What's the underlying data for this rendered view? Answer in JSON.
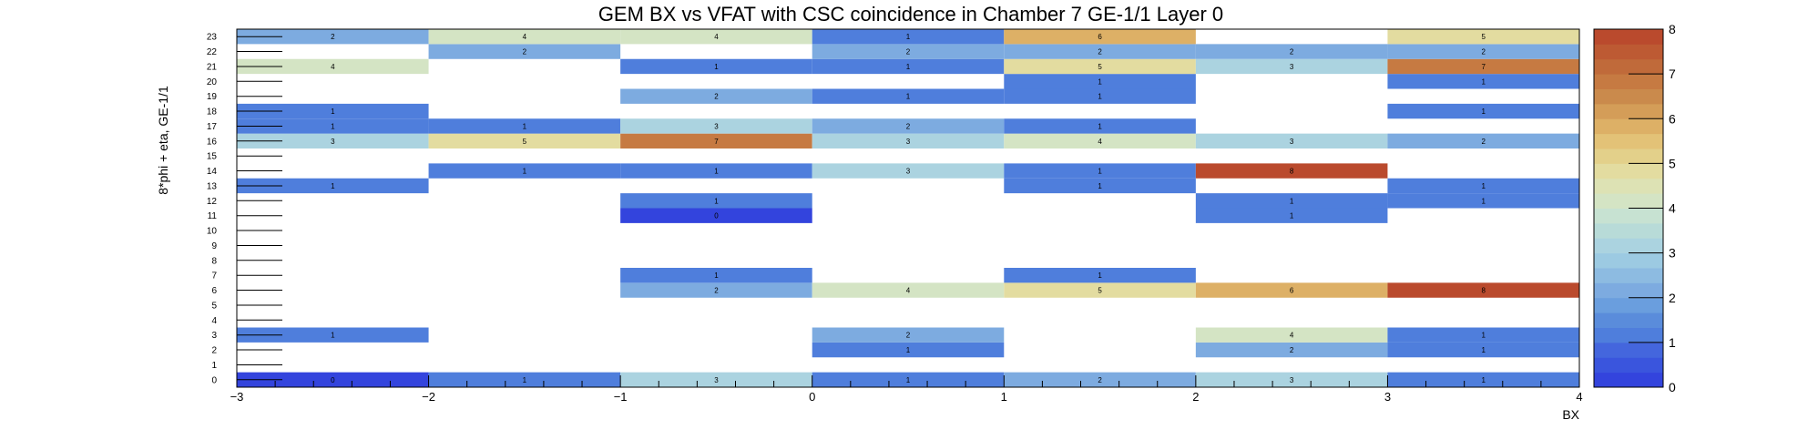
{
  "chart_data": {
    "type": "heatmap",
    "title": "GEM BX vs VFAT with CSC coincidence in Chamber 7 GE-1/1 Layer 0",
    "xlabel": "BX",
    "ylabel": "8*phi + eta, GE-1/1",
    "xlim": [
      -3,
      4
    ],
    "ylim": [
      -0.5,
      23.5
    ],
    "x_bin_edges": [
      -3,
      -2,
      -1,
      0,
      1,
      2,
      3,
      4
    ],
    "x_ticks": [
      -3,
      -2,
      -1,
      0,
      1,
      2,
      3,
      4
    ],
    "x_tick_labels": [
      "−3",
      "−2",
      "−1",
      "0",
      "1",
      "2",
      "3",
      "4"
    ],
    "y_categories": [
      0,
      1,
      2,
      3,
      4,
      5,
      6,
      7,
      8,
      9,
      10,
      11,
      12,
      13,
      14,
      15,
      16,
      17,
      18,
      19,
      20,
      21,
      22,
      23
    ],
    "zlim": [
      0,
      8
    ],
    "z_ticks": [
      0,
      1,
      2,
      3,
      4,
      5,
      6,
      7,
      8
    ],
    "colorbar_colors": [
      "#3344dd",
      "#3a55dd",
      "#4466dd",
      "#4f7edc",
      "#5a8cdb",
      "#6a9ede",
      "#7dabe0",
      "#8dbbe1",
      "#9ccae2",
      "#abd3e0",
      "#b8dbd8",
      "#c7e2d2",
      "#d4e4c4",
      "#dde2b4",
      "#e3dca0",
      "#e3d08a",
      "#e3c277",
      "#ddb066",
      "#d49d58",
      "#ca8a4c",
      "#c67a42",
      "#c06a3a",
      "#bd5a33",
      "#ba4a2d"
    ],
    "cells": [
      {
        "bx": -2.5,
        "vfat": 0,
        "value": 0
      },
      {
        "bx": -1.5,
        "vfat": 0,
        "value": 1
      },
      {
        "bx": -0.5,
        "vfat": 0,
        "value": 3
      },
      {
        "bx": 0.5,
        "vfat": 0,
        "value": 1
      },
      {
        "bx": 1.5,
        "vfat": 0,
        "value": 2
      },
      {
        "bx": 2.5,
        "vfat": 0,
        "value": 3
      },
      {
        "bx": 3.5,
        "vfat": 0,
        "value": 1
      },
      {
        "bx": 0.5,
        "vfat": 2,
        "value": 1
      },
      {
        "bx": 2.5,
        "vfat": 2,
        "value": 2
      },
      {
        "bx": 3.5,
        "vfat": 2,
        "value": 1
      },
      {
        "bx": -2.5,
        "vfat": 3,
        "value": 1
      },
      {
        "bx": 0.5,
        "vfat": 3,
        "value": 2
      },
      {
        "bx": 2.5,
        "vfat": 3,
        "value": 4
      },
      {
        "bx": 3.5,
        "vfat": 3,
        "value": 1
      },
      {
        "bx": -0.5,
        "vfat": 6,
        "value": 2
      },
      {
        "bx": 0.5,
        "vfat": 6,
        "value": 4
      },
      {
        "bx": 1.5,
        "vfat": 6,
        "value": 5
      },
      {
        "bx": 2.5,
        "vfat": 6,
        "value": 6
      },
      {
        "bx": 3.5,
        "vfat": 6,
        "value": 8
      },
      {
        "bx": -0.5,
        "vfat": 7,
        "value": 1
      },
      {
        "bx": 1.5,
        "vfat": 7,
        "value": 1
      },
      {
        "bx": -0.5,
        "vfat": 11,
        "value": 0
      },
      {
        "bx": 2.5,
        "vfat": 11,
        "value": 1
      },
      {
        "bx": -0.5,
        "vfat": 12,
        "value": 1
      },
      {
        "bx": 2.5,
        "vfat": 12,
        "value": 1
      },
      {
        "bx": 3.5,
        "vfat": 12,
        "value": 1
      },
      {
        "bx": -2.5,
        "vfat": 13,
        "value": 1
      },
      {
        "bx": 1.5,
        "vfat": 13,
        "value": 1
      },
      {
        "bx": 3.5,
        "vfat": 13,
        "value": 1
      },
      {
        "bx": -1.5,
        "vfat": 14,
        "value": 1
      },
      {
        "bx": -0.5,
        "vfat": 14,
        "value": 1
      },
      {
        "bx": 0.5,
        "vfat": 14,
        "value": 3
      },
      {
        "bx": 1.5,
        "vfat": 14,
        "value": 1
      },
      {
        "bx": 2.5,
        "vfat": 14,
        "value": 8
      },
      {
        "bx": -2.5,
        "vfat": 16,
        "value": 3
      },
      {
        "bx": -1.5,
        "vfat": 16,
        "value": 5
      },
      {
        "bx": -0.5,
        "vfat": 16,
        "value": 7
      },
      {
        "bx": 0.5,
        "vfat": 16,
        "value": 3
      },
      {
        "bx": 1.5,
        "vfat": 16,
        "value": 4
      },
      {
        "bx": 2.5,
        "vfat": 16,
        "value": 3
      },
      {
        "bx": 3.5,
        "vfat": 16,
        "value": 2
      },
      {
        "bx": -2.5,
        "vfat": 17,
        "value": 1
      },
      {
        "bx": -1.5,
        "vfat": 17,
        "value": 1
      },
      {
        "bx": -0.5,
        "vfat": 17,
        "value": 3
      },
      {
        "bx": 0.5,
        "vfat": 17,
        "value": 2
      },
      {
        "bx": 1.5,
        "vfat": 17,
        "value": 1
      },
      {
        "bx": -2.5,
        "vfat": 18,
        "value": 1
      },
      {
        "bx": 3.5,
        "vfat": 18,
        "value": 1
      },
      {
        "bx": -0.5,
        "vfat": 19,
        "value": 2
      },
      {
        "bx": 0.5,
        "vfat": 19,
        "value": 1
      },
      {
        "bx": 1.5,
        "vfat": 19,
        "value": 1
      },
      {
        "bx": 1.5,
        "vfat": 20,
        "value": 1
      },
      {
        "bx": 3.5,
        "vfat": 20,
        "value": 1
      },
      {
        "bx": -2.5,
        "vfat": 21,
        "value": 4
      },
      {
        "bx": -0.5,
        "vfat": 21,
        "value": 1
      },
      {
        "bx": 0.5,
        "vfat": 21,
        "value": 1
      },
      {
        "bx": 1.5,
        "vfat": 21,
        "value": 5
      },
      {
        "bx": 2.5,
        "vfat": 21,
        "value": 3
      },
      {
        "bx": 3.5,
        "vfat": 21,
        "value": 7
      },
      {
        "bx": -1.5,
        "vfat": 22,
        "value": 2
      },
      {
        "bx": 0.5,
        "vfat": 22,
        "value": 2
      },
      {
        "bx": 1.5,
        "vfat": 22,
        "value": 2
      },
      {
        "bx": 2.5,
        "vfat": 22,
        "value": 2
      },
      {
        "bx": 3.5,
        "vfat": 22,
        "value": 2
      },
      {
        "bx": -2.5,
        "vfat": 23,
        "value": 2
      },
      {
        "bx": -1.5,
        "vfat": 23,
        "value": 4
      },
      {
        "bx": -0.5,
        "vfat": 23,
        "value": 4
      },
      {
        "bx": 0.5,
        "vfat": 23,
        "value": 1
      },
      {
        "bx": 1.5,
        "vfat": 23,
        "value": 6
      },
      {
        "bx": 3.5,
        "vfat": 23,
        "value": 5
      }
    ]
  }
}
